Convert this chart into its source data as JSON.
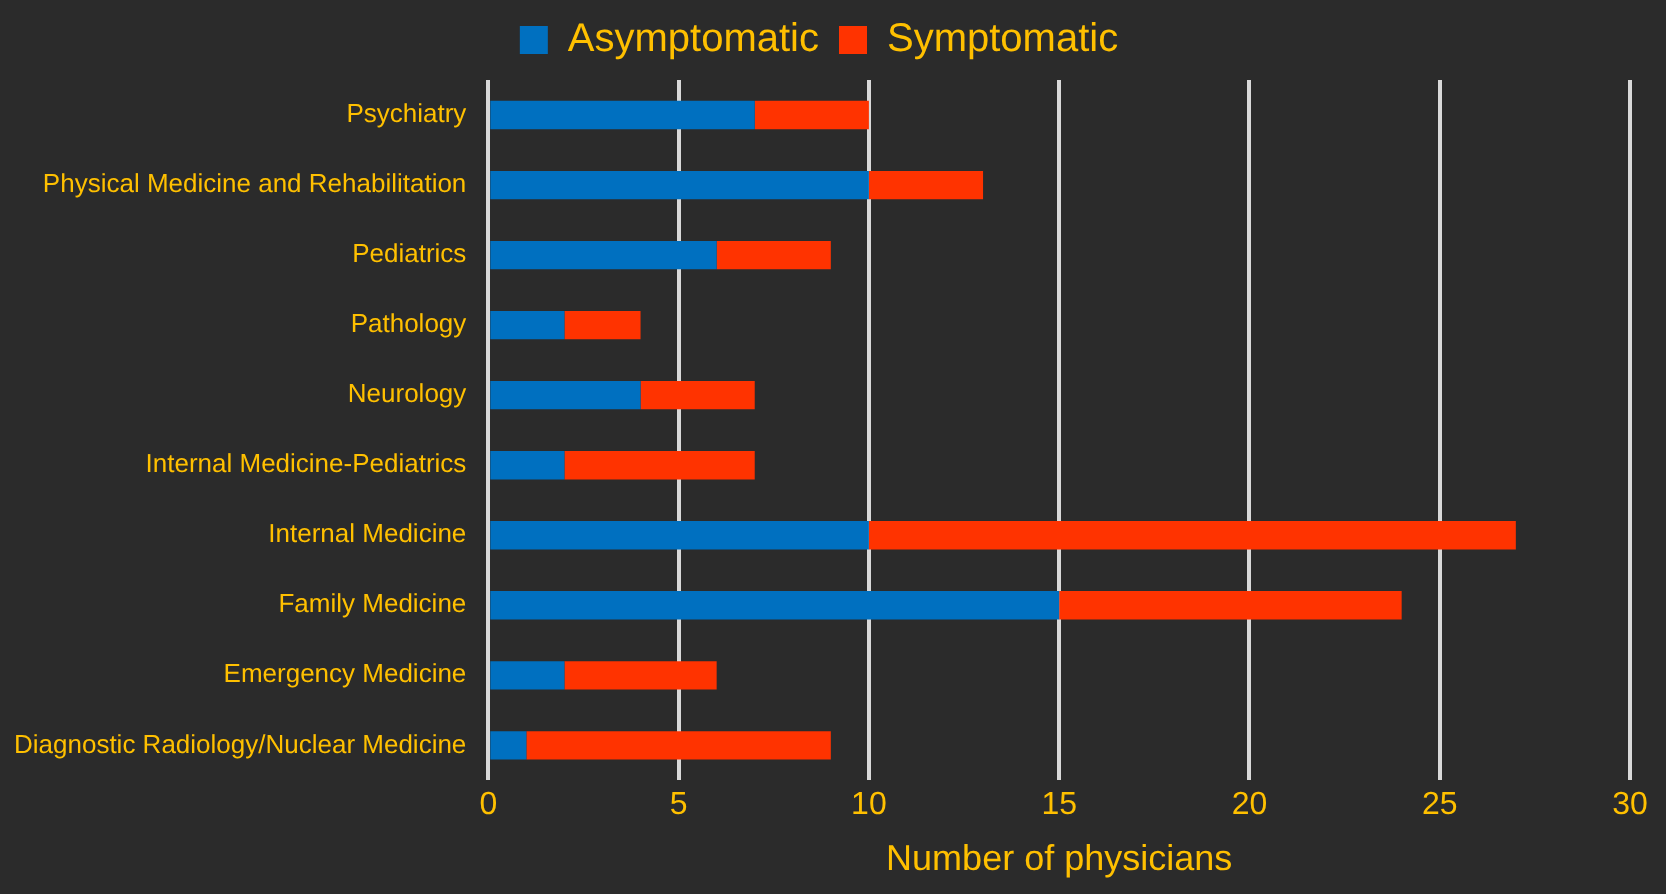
{
  "chart_data": {
    "type": "bar",
    "orientation": "horizontal",
    "stacked": true,
    "xlabel": "Number of physicians",
    "categories": [
      "Psychiatry",
      "Physical Medicine and Rehabilitation",
      "Pediatrics",
      "Pathology",
      "Neurology",
      "Internal Medicine-Pediatrics",
      "Internal Medicine",
      "Family Medicine",
      "Emergency Medicine",
      "Diagnostic Radiology/Nuclear Medicine"
    ],
    "series": [
      {
        "name": "Asymptomatic",
        "color": "#0070c0",
        "values": [
          7,
          10,
          6,
          2,
          4,
          2,
          10,
          15,
          2,
          1
        ]
      },
      {
        "name": "Symptomatic",
        "color": "#ff3300",
        "values": [
          3,
          3,
          3,
          2,
          3,
          5,
          17,
          9,
          4,
          8
        ]
      }
    ],
    "xlim": [
      0,
      30
    ],
    "xticks": [
      0,
      5,
      10,
      15,
      20,
      25,
      30
    ],
    "grid": "x",
    "legend": "top"
  }
}
